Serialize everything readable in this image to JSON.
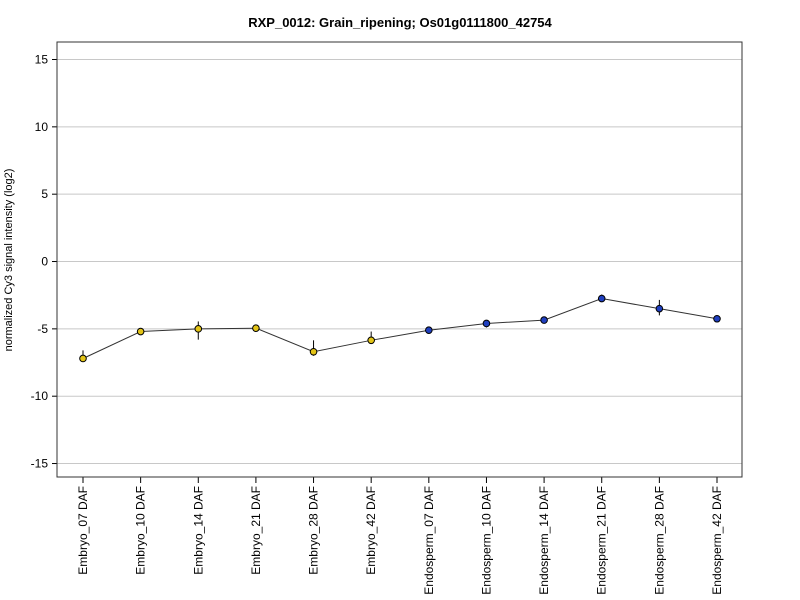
{
  "chart_data": {
    "type": "line",
    "title": "RXP_0012: Grain_ripening; Os01g0111800_42754",
    "xlabel": "",
    "ylabel": "normalized Cy3 signal intensity (log2)",
    "ylim": [
      -16,
      16.3
    ],
    "yticks": [
      -15,
      -10,
      -5,
      0,
      5,
      10,
      15
    ],
    "grid": true,
    "categories": [
      "Embryo_07 DAF",
      "Embryo_10 DAF",
      "Embryo_14 DAF",
      "Embryo_21 DAF",
      "Embryo_28 DAF",
      "Embryo_42 DAF",
      "Endosperm_07 DAF",
      "Endosperm_10 DAF",
      "Endosperm_14 DAF",
      "Endosperm_21 DAF",
      "Endosperm_28 DAF",
      "Endosperm_42 DAF"
    ],
    "series": [
      {
        "values": [
          -7.2,
          -5.2,
          -5.0,
          -4.95,
          -6.7,
          -5.85,
          -5.1,
          -4.6,
          -4.35,
          -2.75,
          -3.5,
          -4.25
        ],
        "err_low": [
          -7.3,
          -5.3,
          -5.8,
          -5.05,
          -7.0,
          -6.0,
          -5.2,
          -4.9,
          -4.45,
          -3.0,
          -4.0,
          -4.4
        ],
        "err_high": [
          -6.6,
          -5.05,
          -4.45,
          -4.85,
          -5.85,
          -5.2,
          -4.95,
          -4.45,
          -4.25,
          -2.45,
          -2.85,
          -4.1
        ],
        "colors": [
          "#e3c417",
          "#e3c417",
          "#e3c417",
          "#e3c417",
          "#e3c417",
          "#e3c417",
          "#1f3fbf",
          "#1f3fbf",
          "#1f3fbf",
          "#1f3fbf",
          "#1f3fbf",
          "#1f3fbf"
        ]
      }
    ]
  }
}
